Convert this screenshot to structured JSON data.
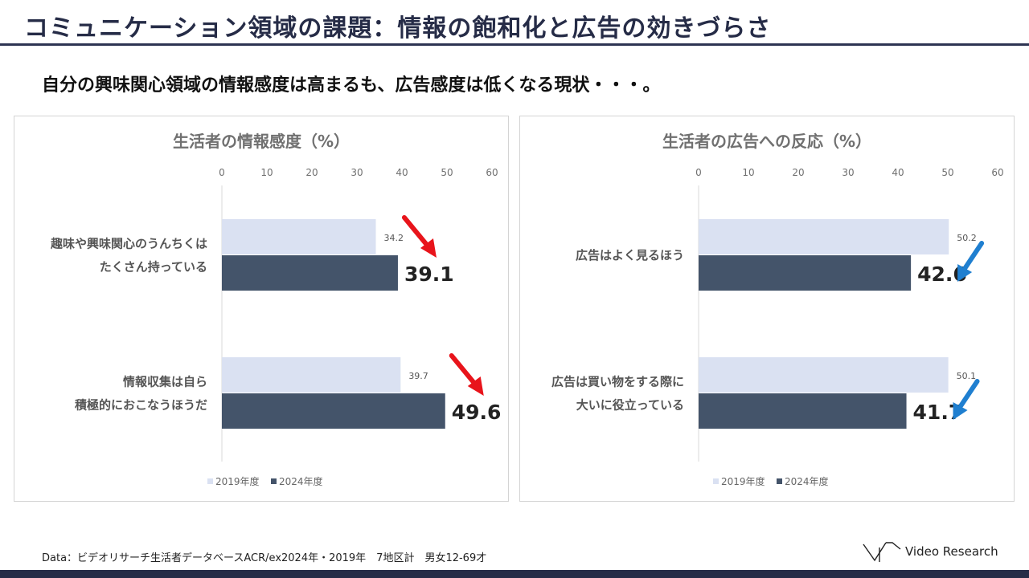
{
  "header": {
    "title": "コミュニケーション領域の課題：情報の飽和化と広告の効きづらさ",
    "subtitle": "自分の興味関心領域の情報感度は高まるも、広告感度は低くなる現状・・・。"
  },
  "colors": {
    "series_2019": "#dae1f2",
    "series_2024": "#44546a",
    "arrow_up": "#e8141b",
    "arrow_down": "#1f7fd0"
  },
  "chart_data": [
    {
      "type": "bar",
      "orientation": "horizontal",
      "title": "生活者の情報感度（%）",
      "categories": [
        [
          "趣味や興味関心のうんちくは",
          "たくさん持っている"
        ],
        [
          "情報収集は自ら",
          "積極的におこなうほうだ"
        ]
      ],
      "series": [
        {
          "name": "2019年度",
          "values": [
            34.2,
            39.7
          ]
        },
        {
          "name": "2024年度",
          "values": [
            39.1,
            49.6
          ]
        }
      ],
      "xlim": [
        0,
        60
      ],
      "xticks": [
        0,
        10,
        20,
        30,
        40,
        50,
        60
      ],
      "legend": "bottom",
      "trend": "up"
    },
    {
      "type": "bar",
      "orientation": "horizontal",
      "title": "生活者の広告への反応（%）",
      "categories": [
        [
          "広告はよく見るほう"
        ],
        [
          "広告は買い物をする際に",
          "大いに役立っている"
        ]
      ],
      "series": [
        {
          "name": "2019年度",
          "values": [
            50.2,
            50.1
          ]
        },
        {
          "name": "2024年度",
          "values": [
            42.6,
            41.7
          ]
        }
      ],
      "xlim": [
        0,
        60
      ],
      "xticks": [
        0,
        10,
        20,
        30,
        40,
        50,
        60
      ],
      "legend": "bottom",
      "trend": "down"
    }
  ],
  "footer": {
    "source": "Data：ビデオリサーチ生活者データベースACR/ex2024年・2019年　7地区計　男女12-69才",
    "logo_text": "Video Research"
  }
}
